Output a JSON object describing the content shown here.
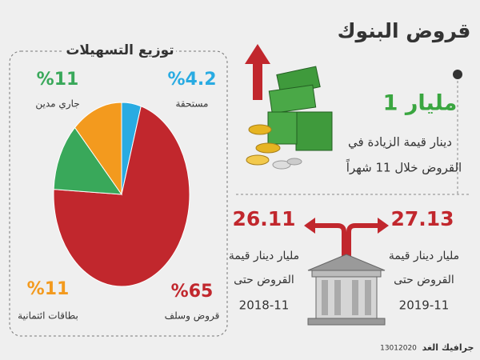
{
  "title": "قروض البنوك",
  "increase": {
    "amount": "1 مليار",
    "line1": "دينار قيمة الزيادة في",
    "line2": "القروض خلال 11 شهراً"
  },
  "loans": [
    {
      "value": "27.13",
      "line1": "مليار دينار قيمة",
      "line2": "القروض حتى",
      "date": "2019-11"
    },
    {
      "value": "26.11",
      "line1": "مليار دينار قيمة",
      "line2": "القروض حتى",
      "date": "2018-11"
    }
  ],
  "footer": {
    "credit": "جرافيك الغد",
    "date": "13012020"
  },
  "chart_data": {
    "type": "pie",
    "title": "توزيع التسهيلات",
    "categories": [
      "مستحقة",
      "قروض وسلف",
      "جاري مدين",
      "بطاقات ائتمانية"
    ],
    "values": [
      4.2,
      65,
      11,
      11
    ],
    "value_labels": [
      "%4.2",
      "%65",
      "%11",
      "%11"
    ],
    "colors": [
      "#29abe2",
      "#c1272d",
      "#39a85a",
      "#f39a1e"
    ]
  }
}
